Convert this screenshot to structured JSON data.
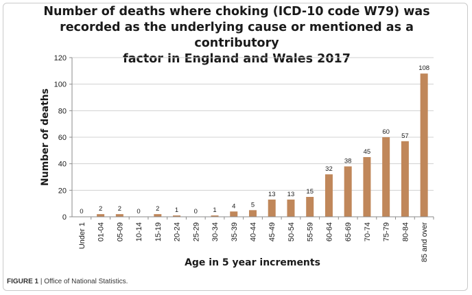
{
  "caption": {
    "label": "FIGURE 1",
    "separator": " | ",
    "text": "Office of National Statistics."
  },
  "chart_data": {
    "type": "bar",
    "title": "Number of deaths where choking (ICD-10 code W79) was\nrecorded as the underlying cause or mentioned as a contributory\nfactor in England and Wales 2017",
    "xlabel": "Age in 5 year increments",
    "ylabel": "Number of deaths",
    "ylim": [
      0,
      120
    ],
    "yticks": [
      0,
      20,
      40,
      60,
      80,
      100,
      120
    ],
    "grid": true,
    "legend": "none",
    "bar_color": "#c0875a",
    "categories": [
      "Under 1",
      "01-04",
      "05-09",
      "10-14",
      "15-19",
      "20-24",
      "25-29",
      "30-34",
      "35-39",
      "40-44",
      "45-49",
      "50-54",
      "55-59",
      "60-64",
      "65-69",
      "70-74",
      "75-79",
      "80-84",
      "85 and over"
    ],
    "values": [
      0,
      2,
      2,
      0,
      2,
      1,
      0,
      1,
      4,
      5,
      13,
      13,
      15,
      32,
      38,
      45,
      60,
      57,
      108
    ]
  }
}
